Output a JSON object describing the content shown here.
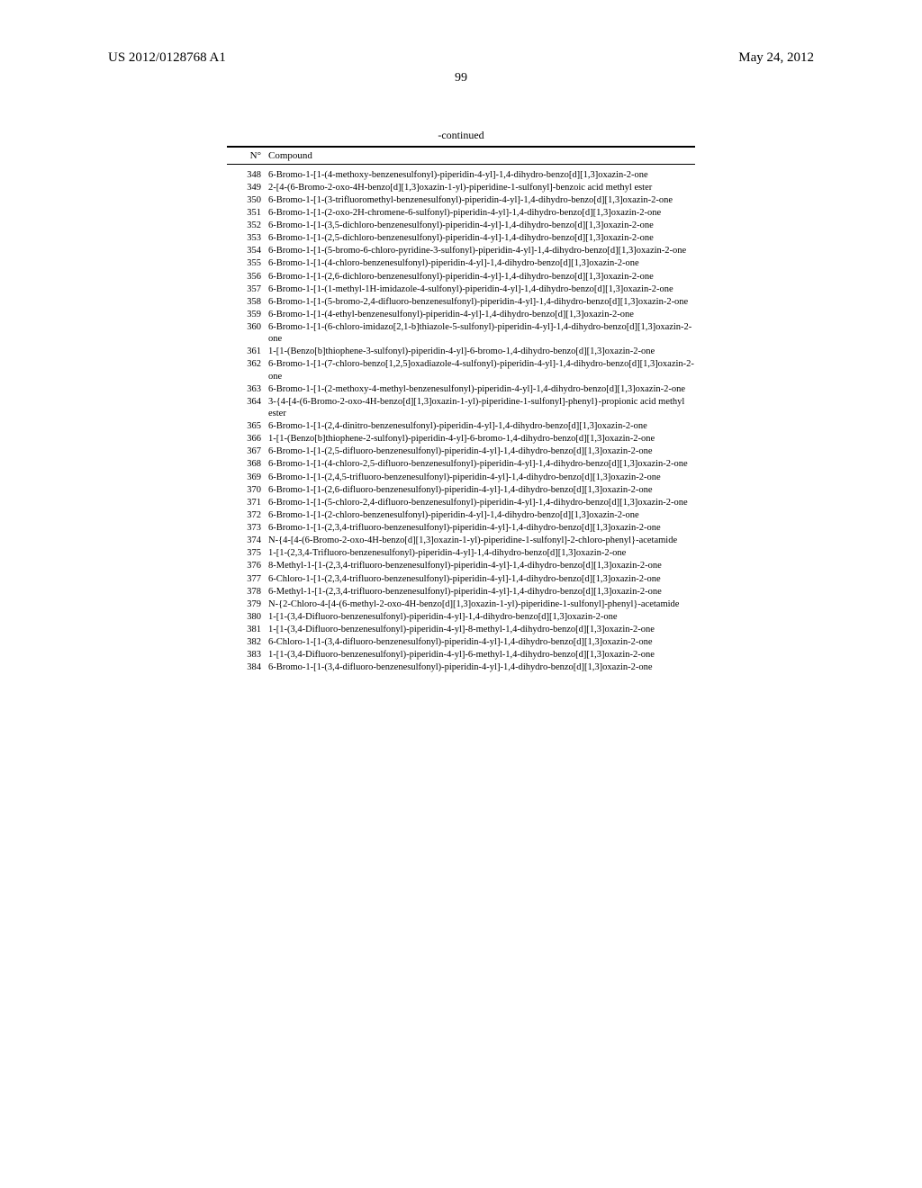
{
  "header": {
    "pub_number": "US 2012/0128768 A1",
    "pub_date": "May 24, 2012"
  },
  "page_number": "99",
  "table": {
    "continued_label": "-continued",
    "head_n": "N°",
    "head_compound": "Compound",
    "rows": [
      {
        "n": "348",
        "c": "6-Bromo-1-[1-(4-methoxy-benzenesulfonyl)-piperidin-4-yl]-1,4-dihydro-benzo[d][1,3]oxazin-2-one"
      },
      {
        "n": "349",
        "c": "2-[4-(6-Bromo-2-oxo-4H-benzo[d][1,3]oxazin-1-yl)-piperidine-1-sulfonyl]-benzoic acid methyl ester"
      },
      {
        "n": "350",
        "c": "6-Bromo-1-[1-(3-trifluoromethyl-benzenesulfonyl)-piperidin-4-yl]-1,4-dihydro-benzo[d][1,3]oxazin-2-one"
      },
      {
        "n": "351",
        "c": "6-Bromo-1-[1-(2-oxo-2H-chromene-6-sulfonyl)-piperidin-4-yl]-1,4-dihydro-benzo[d][1,3]oxazin-2-one"
      },
      {
        "n": "352",
        "c": "6-Bromo-1-[1-(3,5-dichloro-benzenesulfonyl)-piperidin-4-yl]-1,4-dihydro-benzo[d][1,3]oxazin-2-one"
      },
      {
        "n": "353",
        "c": "6-Bromo-1-[1-(2,5-dichloro-benzenesulfonyl)-piperidin-4-yl]-1,4-dihydro-benzo[d][1,3]oxazin-2-one"
      },
      {
        "n": "354",
        "c": "6-Bromo-1-[1-(5-bromo-6-chloro-pyridine-3-sulfonyl)-piperidin-4-yl]-1,4-dihydro-benzo[d][1,3]oxazin-2-one"
      },
      {
        "n": "355",
        "c": "6-Bromo-1-[1-(4-chloro-benzenesulfonyl)-piperidin-4-yl]-1,4-dihydro-benzo[d][1,3]oxazin-2-one"
      },
      {
        "n": "356",
        "c": "6-Bromo-1-[1-(2,6-dichloro-benzenesulfonyl)-piperidin-4-yl]-1,4-dihydro-benzo[d][1,3]oxazin-2-one"
      },
      {
        "n": "357",
        "c": "6-Bromo-1-[1-(1-methyl-1H-imidazole-4-sulfonyl)-piperidin-4-yl]-1,4-dihydro-benzo[d][1,3]oxazin-2-one"
      },
      {
        "n": "358",
        "c": "6-Bromo-1-[1-(5-bromo-2,4-difluoro-benzenesulfonyl)-piperidin-4-yl]-1,4-dihydro-benzo[d][1,3]oxazin-2-one"
      },
      {
        "n": "359",
        "c": "6-Bromo-1-[1-(4-ethyl-benzenesulfonyl)-piperidin-4-yl]-1,4-dihydro-benzo[d][1,3]oxazin-2-one"
      },
      {
        "n": "360",
        "c": "6-Bromo-1-[1-(6-chloro-imidazo[2,1-b]thiazole-5-sulfonyl)-piperidin-4-yl]-1,4-dihydro-benzo[d][1,3]oxazin-2-one"
      },
      {
        "n": "361",
        "c": "1-[1-(Benzo[b]thiophene-3-sulfonyl)-piperidin-4-yl]-6-bromo-1,4-dihydro-benzo[d][1,3]oxazin-2-one"
      },
      {
        "n": "362",
        "c": "6-Bromo-1-[1-(7-chloro-benzo[1,2,5]oxadiazole-4-sulfonyl)-piperidin-4-yl]-1,4-dihydro-benzo[d][1,3]oxazin-2-one"
      },
      {
        "n": "363",
        "c": "6-Bromo-1-[1-(2-methoxy-4-methyl-benzenesulfonyl)-piperidin-4-yl]-1,4-dihydro-benzo[d][1,3]oxazin-2-one"
      },
      {
        "n": "364",
        "c": "3-{4-[4-(6-Bromo-2-oxo-4H-benzo[d][1,3]oxazin-1-yl)-piperidine-1-sulfonyl]-phenyl}-propionic acid methyl ester"
      },
      {
        "n": "365",
        "c": "6-Bromo-1-[1-(2,4-dinitro-benzenesulfonyl)-piperidin-4-yl]-1,4-dihydro-benzo[d][1,3]oxazin-2-one"
      },
      {
        "n": "366",
        "c": "1-[1-(Benzo[b]thiophene-2-sulfonyl)-piperidin-4-yl]-6-bromo-1,4-dihydro-benzo[d][1,3]oxazin-2-one"
      },
      {
        "n": "367",
        "c": "6-Bromo-1-[1-(2,5-difluoro-benzenesulfonyl)-piperidin-4-yl]-1,4-dihydro-benzo[d][1,3]oxazin-2-one"
      },
      {
        "n": "368",
        "c": "6-Bromo-1-[1-(4-chloro-2,5-difluoro-benzenesulfonyl)-piperidin-4-yl]-1,4-dihydro-benzo[d][1,3]oxazin-2-one"
      },
      {
        "n": "369",
        "c": "6-Bromo-1-[1-(2,4,5-trifluoro-benzenesulfonyl)-piperidin-4-yl]-1,4-dihydro-benzo[d][1,3]oxazin-2-one"
      },
      {
        "n": "370",
        "c": "6-Bromo-1-[1-(2,6-difluoro-benzenesulfonyl)-piperidin-4-yl]-1,4-dihydro-benzo[d][1,3]oxazin-2-one"
      },
      {
        "n": "371",
        "c": "6-Bromo-1-[1-(5-chloro-2,4-difluoro-benzenesulfonyl)-piperidin-4-yl]-1,4-dihydro-benzo[d][1,3]oxazin-2-one"
      },
      {
        "n": "372",
        "c": "6-Bromo-1-[1-(2-chloro-benzenesulfonyl)-piperidin-4-yl]-1,4-dihydro-benzo[d][1,3]oxazin-2-one"
      },
      {
        "n": "373",
        "c": "6-Bromo-1-[1-(2,3,4-trifluoro-benzenesulfonyl)-piperidin-4-yl]-1,4-dihydro-benzo[d][1,3]oxazin-2-one"
      },
      {
        "n": "374",
        "c": "N-{4-[4-(6-Bromo-2-oxo-4H-benzo[d][1,3]oxazin-1-yl)-piperidine-1-sulfonyl]-2-chloro-phenyl}-acetamide"
      },
      {
        "n": "375",
        "c": "1-[1-(2,3,4-Trifluoro-benzenesulfonyl)-piperidin-4-yl]-1,4-dihydro-benzo[d][1,3]oxazin-2-one"
      },
      {
        "n": "376",
        "c": "8-Methyl-1-[1-(2,3,4-trifluoro-benzenesulfonyl)-piperidin-4-yl]-1,4-dihydro-benzo[d][1,3]oxazin-2-one"
      },
      {
        "n": "377",
        "c": "6-Chloro-1-[1-(2,3,4-trifluoro-benzenesulfonyl)-piperidin-4-yl]-1,4-dihydro-benzo[d][1,3]oxazin-2-one"
      },
      {
        "n": "378",
        "c": "6-Methyl-1-[1-(2,3,4-trifluoro-benzenesulfonyl)-piperidin-4-yl]-1,4-dihydro-benzo[d][1,3]oxazin-2-one"
      },
      {
        "n": "379",
        "c": "N-{2-Chloro-4-[4-(6-methyl-2-oxo-4H-benzo[d][1,3]oxazin-1-yl)-piperidine-1-sulfonyl]-phenyl}-acetamide"
      },
      {
        "n": "380",
        "c": "1-[1-(3,4-Difluoro-benzenesulfonyl)-piperidin-4-yl]-1,4-dihydro-benzo[d][1,3]oxazin-2-one"
      },
      {
        "n": "381",
        "c": "1-[1-(3,4-Difluoro-benzenesulfonyl)-piperidin-4-yl]-8-methyl-1,4-dihydro-benzo[d][1,3]oxazin-2-one"
      },
      {
        "n": "382",
        "c": "6-Chloro-1-[1-(3,4-difluoro-benzenesulfonyl)-piperidin-4-yl]-1,4-dihydro-benzo[d][1,3]oxazin-2-one"
      },
      {
        "n": "383",
        "c": "1-[1-(3,4-Difluoro-benzenesulfonyl)-piperidin-4-yl]-6-methyl-1,4-dihydro-benzo[d][1,3]oxazin-2-one"
      },
      {
        "n": "384",
        "c": "6-Bromo-1-[1-(3,4-difluoro-benzenesulfonyl)-piperidin-4-yl]-1,4-dihydro-benzo[d][1,3]oxazin-2-one"
      }
    ]
  }
}
